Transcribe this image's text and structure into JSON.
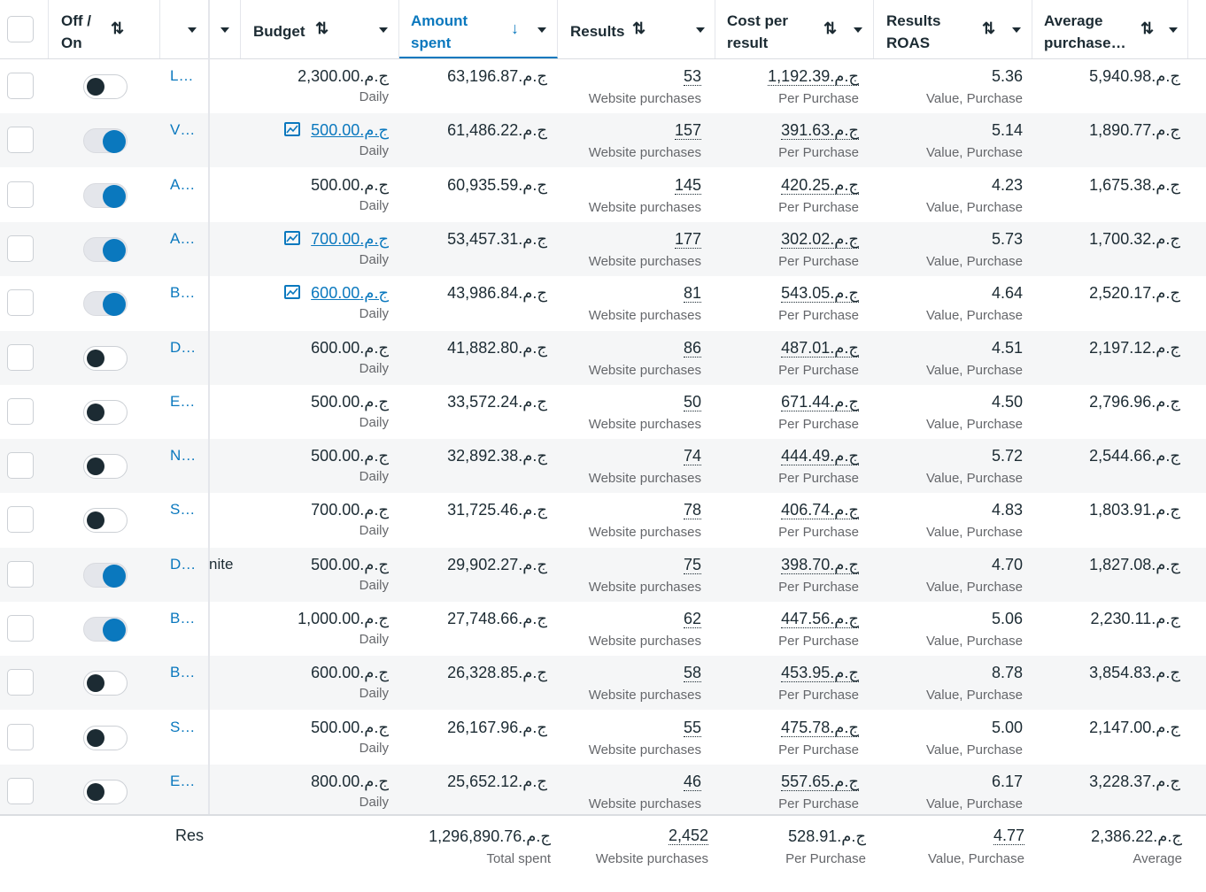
{
  "header": {
    "off_on": "Off /\nOn",
    "budget": "Budget",
    "amount_spent": "Amount\nspent",
    "results": "Results",
    "cost_per_result": "Cost per\nresult",
    "results_roas": "Results\nROAS",
    "average_purchase": "Average\npurchase…"
  },
  "rows": [
    {
      "on": false,
      "name": "L…",
      "extra": "",
      "budget": "ج.م.2,300.00",
      "budget_link": false,
      "budget_sub": "Daily",
      "spent": "ج.م.63,196.87",
      "results": "53",
      "results_sub": "Website purchases",
      "cpr": "ج.م.1,192.39",
      "cpr_sub": "Per Purchase",
      "roas": "5.36",
      "roas_sub": "Value, Purchase",
      "avg": "ج.م.5,940.98"
    },
    {
      "on": true,
      "name": "V…",
      "extra": "",
      "budget": "ج.م.500.00",
      "budget_link": true,
      "budget_sub": "Daily",
      "spent": "ج.م.61,486.22",
      "results": "157",
      "results_sub": "Website purchases",
      "cpr": "ج.م.391.63",
      "cpr_sub": "Per Purchase",
      "roas": "5.14",
      "roas_sub": "Value, Purchase",
      "avg": "ج.م.1,890.77"
    },
    {
      "on": true,
      "name": "A…",
      "extra": "",
      "budget": "ج.م.500.00",
      "budget_link": false,
      "budget_sub": "Daily",
      "spent": "ج.م.60,935.59",
      "results": "145",
      "results_sub": "Website purchases",
      "cpr": "ج.م.420.25",
      "cpr_sub": "Per Purchase",
      "roas": "4.23",
      "roas_sub": "Value, Purchase",
      "avg": "ج.م.1,675.38"
    },
    {
      "on": true,
      "name": "A…",
      "extra": "",
      "budget": "ج.م.700.00",
      "budget_link": true,
      "budget_sub": "Daily",
      "spent": "ج.م.53,457.31",
      "results": "177",
      "results_sub": "Website purchases",
      "cpr": "ج.م.302.02",
      "cpr_sub": "Per Purchase",
      "roas": "5.73",
      "roas_sub": "Value, Purchase",
      "avg": "ج.م.1,700.32"
    },
    {
      "on": true,
      "name": "B…",
      "extra": "",
      "budget": "ج.م.600.00",
      "budget_link": true,
      "budget_sub": "Daily",
      "spent": "ج.م.43,986.84",
      "results": "81",
      "results_sub": "Website purchases",
      "cpr": "ج.م.543.05",
      "cpr_sub": "Per Purchase",
      "roas": "4.64",
      "roas_sub": "Value, Purchase",
      "avg": "ج.م.2,520.17"
    },
    {
      "on": false,
      "name": "D…",
      "extra": "",
      "budget": "ج.م.600.00",
      "budget_link": false,
      "budget_sub": "Daily",
      "spent": "ج.م.41,882.80",
      "results": "86",
      "results_sub": "Website purchases",
      "cpr": "ج.م.487.01",
      "cpr_sub": "Per Purchase",
      "roas": "4.51",
      "roas_sub": "Value, Purchase",
      "avg": "ج.م.2,197.12"
    },
    {
      "on": false,
      "name": "E…",
      "extra": "",
      "budget": "ج.م.500.00",
      "budget_link": false,
      "budget_sub": "Daily",
      "spent": "ج.م.33,572.24",
      "results": "50",
      "results_sub": "Website purchases",
      "cpr": "ج.م.671.44",
      "cpr_sub": "Per Purchase",
      "roas": "4.50",
      "roas_sub": "Value, Purchase",
      "avg": "ج.م.2,796.96"
    },
    {
      "on": false,
      "name": "N…",
      "extra": "",
      "budget": "ج.م.500.00",
      "budget_link": false,
      "budget_sub": "Daily",
      "spent": "ج.م.32,892.38",
      "results": "74",
      "results_sub": "Website purchases",
      "cpr": "ج.م.444.49",
      "cpr_sub": "Per Purchase",
      "roas": "5.72",
      "roas_sub": "Value, Purchase",
      "avg": "ج.م.2,544.66"
    },
    {
      "on": false,
      "name": "S…",
      "extra": "",
      "budget": "ج.م.700.00",
      "budget_link": false,
      "budget_sub": "Daily",
      "spent": "ج.م.31,725.46",
      "results": "78",
      "results_sub": "Website purchases",
      "cpr": "ج.م.406.74",
      "cpr_sub": "Per Purchase",
      "roas": "4.83",
      "roas_sub": "Value, Purchase",
      "avg": "ج.م.1,803.91"
    },
    {
      "on": true,
      "name": "D…",
      "extra": "nite",
      "budget": "ج.م.500.00",
      "budget_link": false,
      "budget_sub": "Daily",
      "spent": "ج.م.29,902.27",
      "results": "75",
      "results_sub": "Website purchases",
      "cpr": "ج.م.398.70",
      "cpr_sub": "Per Purchase",
      "roas": "4.70",
      "roas_sub": "Value, Purchase",
      "avg": "ج.م.1,827.08"
    },
    {
      "on": true,
      "name": "B…",
      "extra": "",
      "budget": "ج.م.1,000.00",
      "budget_link": false,
      "budget_sub": "Daily",
      "spent": "ج.م.27,748.66",
      "results": "62",
      "results_sub": "Website purchases",
      "cpr": "ج.م.447.56",
      "cpr_sub": "Per Purchase",
      "roas": "5.06",
      "roas_sub": "Value, Purchase",
      "avg": "ج.م.2,230.11"
    },
    {
      "on": false,
      "name": "B…",
      "extra": "",
      "budget": "ج.م.600.00",
      "budget_link": false,
      "budget_sub": "Daily",
      "spent": "ج.م.26,328.85",
      "results": "58",
      "results_sub": "Website purchases",
      "cpr": "ج.م.453.95",
      "cpr_sub": "Per Purchase",
      "roas": "8.78",
      "roas_sub": "Value, Purchase",
      "avg": "ج.م.3,854.83"
    },
    {
      "on": false,
      "name": "S…",
      "extra": "",
      "budget": "ج.م.500.00",
      "budget_link": false,
      "budget_sub": "Daily",
      "spent": "ج.م.26,167.96",
      "results": "55",
      "results_sub": "Website purchases",
      "cpr": "ج.م.475.78",
      "cpr_sub": "Per Purchase",
      "roas": "5.00",
      "roas_sub": "Value, Purchase",
      "avg": "ج.م.2,147.00"
    },
    {
      "on": false,
      "name": "E…",
      "extra": "",
      "budget": "ج.م.800.00",
      "budget_link": false,
      "budget_sub": "Daily",
      "spent": "ج.م.25,652.12",
      "results": "46",
      "results_sub": "Website purchases",
      "cpr": "ج.م.557.65",
      "cpr_sub": "Per Purchase",
      "roas": "6.17",
      "roas_sub": "Value, Purchase",
      "avg": "ج.م.3,228.37"
    }
  ],
  "footer": {
    "label": "Res",
    "spent": "ج.م.1,296,890.76",
    "spent_sub": "Total spent",
    "results": "2,452",
    "results_sub": "Website purchases",
    "cpr": "ج.م.528.91",
    "cpr_sub": "Per Purchase",
    "roas": "4.77",
    "roas_sub": "Value, Purchase",
    "avg": "ج.م.2,386.22",
    "avg_sub": "Average"
  }
}
